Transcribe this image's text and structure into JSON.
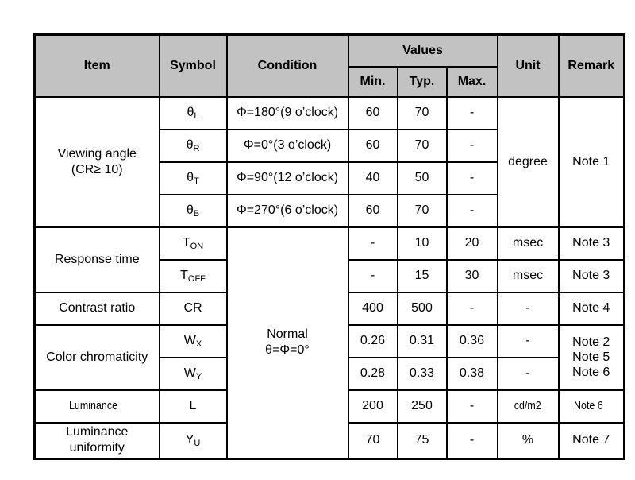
{
  "colors": {
    "header_bg": "#c2c2c2",
    "border": "#000000",
    "text": "#000000",
    "page_bg": "#ffffff"
  },
  "table": {
    "header": {
      "item": "Item",
      "symbol": "Symbol",
      "condition": "Condition",
      "values": "Values",
      "min": "Min.",
      "typ": "Typ.",
      "max": "Max.",
      "unit": "Unit",
      "remark": "Remark"
    },
    "viewing_angle": {
      "item_line1": "Viewing angle",
      "item_line2": "(CR≥ 10)",
      "unit": "degree",
      "remark": "Note 1",
      "rows": [
        {
          "sym_base": "θ",
          "sym_sub": "L",
          "condition": "Φ=180°(9 o’clock)",
          "min": "60",
          "typ": "70",
          "max": "-"
        },
        {
          "sym_base": "θ",
          "sym_sub": "R",
          "condition": "Φ=0°(3 o’clock)",
          "min": "60",
          "typ": "70",
          "max": "-"
        },
        {
          "sym_base": "θ",
          "sym_sub": "T",
          "condition": "Φ=90°(12 o’clock)",
          "min": "40",
          "typ": "50",
          "max": "-"
        },
        {
          "sym_base": "θ",
          "sym_sub": "B",
          "condition": "Φ=270°(6 o’clock)",
          "min": "60",
          "typ": "70",
          "max": "-"
        }
      ]
    },
    "normal_condition": {
      "line1": "Normal",
      "line2": "θ=Φ=0°"
    },
    "response_time": {
      "item": "Response time",
      "rows": [
        {
          "sym_base": "T",
          "sym_sub": "ON",
          "min": "-",
          "typ": "10",
          "max": "20",
          "unit": "msec",
          "remark": "Note 3"
        },
        {
          "sym_base": "T",
          "sym_sub": "OFF",
          "min": "-",
          "typ": "15",
          "max": "30",
          "unit": "msec",
          "remark": "Note 3"
        }
      ]
    },
    "contrast_ratio": {
      "item": "Contrast ratio",
      "symbol": "CR",
      "min": "400",
      "typ": "500",
      "max": "-",
      "unit": "-",
      "remark": "Note 4"
    },
    "color_chromaticity": {
      "item": "Color chromaticity",
      "remark_lines": [
        "Note 2",
        "Note 5",
        "Note 6"
      ],
      "rows": [
        {
          "sym_base": "W",
          "sym_sub": "X",
          "min": "0.26",
          "typ": "0.31",
          "max": "0.36",
          "unit": "-"
        },
        {
          "sym_base": "W",
          "sym_sub": "Y",
          "min": "0.28",
          "typ": "0.33",
          "max": "0.38",
          "unit": "-"
        }
      ]
    },
    "luminance": {
      "item": "Luminance",
      "symbol": "L",
      "min": "200",
      "typ": "250",
      "max": "-",
      "unit": "cd/m2",
      "remark": "Note 6"
    },
    "luminance_uniformity": {
      "item_line1": "Luminance",
      "item_line2": "uniformity",
      "sym_base": "Y",
      "sym_sub": "U",
      "min": "70",
      "typ": "75",
      "max": "-",
      "unit": "%",
      "remark": "Note 7"
    }
  }
}
